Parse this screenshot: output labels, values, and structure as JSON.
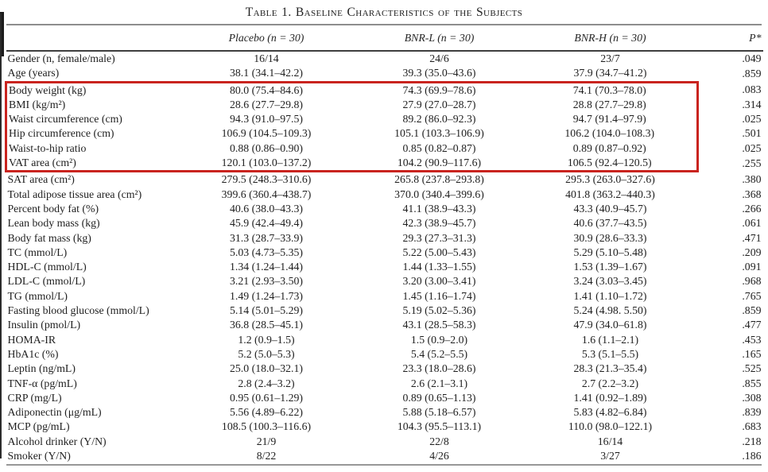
{
  "title": "Table 1. Baseline Characteristics of the Subjects",
  "columns": [
    "",
    "Placebo (n = 30)",
    "BNR-L (n = 30)",
    "BNR-H (n = 30)",
    "P*"
  ],
  "highlight_box": {
    "color": "#c9241f",
    "first_row": "Body weight (kg)",
    "last_row": "VAT area (cm²)",
    "covers_columns": [
      "label",
      "Placebo",
      "BNR-L",
      "BNR-H"
    ]
  },
  "rows": [
    {
      "label": "Gender (n, female/male)",
      "placebo": "16/14",
      "bnr_l": "24/6",
      "bnr_h": "23/7",
      "p": ".049",
      "highlighted": false
    },
    {
      "label": "Age (years)",
      "placebo": "38.1 (34.1–42.2)",
      "bnr_l": "39.3 (35.0–43.6)",
      "bnr_h": "37.9 (34.7–41.2)",
      "p": ".859",
      "highlighted": false
    },
    {
      "label": "Body weight (kg)",
      "placebo": "80.0 (75.4–84.6)",
      "bnr_l": "74.3 (69.9–78.6)",
      "bnr_h": "74.1 (70.3–78.0)",
      "p": ".083",
      "highlighted": true
    },
    {
      "label": "BMI (kg/m²)",
      "placebo": "28.6 (27.7–29.8)",
      "bnr_l": "27.9 (27.0–28.7)",
      "bnr_h": "28.8 (27.7–29.8)",
      "p": ".314",
      "highlighted": true
    },
    {
      "label": "Waist circumference (cm)",
      "placebo": "94.3 (91.0–97.5)",
      "bnr_l": "89.2 (86.0–92.3)",
      "bnr_h": "94.7 (91.4–97.9)",
      "p": ".025",
      "highlighted": true
    },
    {
      "label": "Hip circumference (cm)",
      "placebo": "106.9 (104.5–109.3)",
      "bnr_l": "105.1 (103.3–106.9)",
      "bnr_h": "106.2 (104.0–108.3)",
      "p": ".501",
      "highlighted": true
    },
    {
      "label": "Waist-to-hip ratio",
      "placebo": "0.88 (0.86–0.90)",
      "bnr_l": "0.85 (0.82–0.87)",
      "bnr_h": "0.89 (0.87–0.92)",
      "p": ".025",
      "highlighted": true
    },
    {
      "label": "VAT area (cm²)",
      "placebo": "120.1 (103.0–137.2)",
      "bnr_l": "104.2 (90.9–117.6)",
      "bnr_h": "106.5 (92.4–120.5)",
      "p": ".255",
      "highlighted": true
    },
    {
      "label": "SAT area (cm²)",
      "placebo": "279.5 (248.3–310.6)",
      "bnr_l": "265.8 (237.8–293.8)",
      "bnr_h": "295.3 (263.0–327.6)",
      "p": ".380",
      "highlighted": false
    },
    {
      "label": "Total adipose tissue area (cm²)",
      "placebo": "399.6 (360.4–438.7)",
      "bnr_l": "370.0 (340.4–399.6)",
      "bnr_h": "401.8 (363.2–440.3)",
      "p": ".368",
      "highlighted": false
    },
    {
      "label": "Percent body fat (%)",
      "placebo": "40.6 (38.0–43.3)",
      "bnr_l": "41.1 (38.9–43.3)",
      "bnr_h": "43.3 (40.9–45.7)",
      "p": ".266",
      "highlighted": false
    },
    {
      "label": "Lean body mass (kg)",
      "placebo": "45.9 (42.4–49.4)",
      "bnr_l": "42.3 (38.9–45.7)",
      "bnr_h": "40.6 (37.7–43.5)",
      "p": ".061",
      "highlighted": false
    },
    {
      "label": "Body fat mass (kg)",
      "placebo": "31.3 (28.7–33.9)",
      "bnr_l": "29.3 (27.3–31.3)",
      "bnr_h": "30.9 (28.6–33.3)",
      "p": ".471",
      "highlighted": false
    },
    {
      "label": "TC (mmol/L)",
      "placebo": "5.03 (4.73–5.35)",
      "bnr_l": "5.22 (5.00–5.43)",
      "bnr_h": "5.29 (5.10–5.48)",
      "p": ".209",
      "highlighted": false
    },
    {
      "label": "HDL-C (mmol/L)",
      "placebo": "1.34 (1.24–1.44)",
      "bnr_l": "1.44 (1.33–1.55)",
      "bnr_h": "1.53 (1.39–1.67)",
      "p": ".091",
      "highlighted": false
    },
    {
      "label": "LDL-C (mmol/L)",
      "placebo": "3.21 (2.93–3.50)",
      "bnr_l": "3.20 (3.00–3.41)",
      "bnr_h": "3.24 (3.03–3.45)",
      "p": ".968",
      "highlighted": false
    },
    {
      "label": "TG (mmol/L)",
      "placebo": "1.49 (1.24–1.73)",
      "bnr_l": "1.45 (1.16–1.74)",
      "bnr_h": "1.41 (1.10–1.72)",
      "p": ".765",
      "highlighted": false
    },
    {
      "label": "Fasting blood glucose (mmol/L)",
      "placebo": "5.14 (5.01–5.29)",
      "bnr_l": "5.19 (5.02–5.36)",
      "bnr_h": "5.24 (4.98. 5.50)",
      "p": ".859",
      "highlighted": false
    },
    {
      "label": "Insulin (pmol/L)",
      "placebo": "36.8 (28.5–45.1)",
      "bnr_l": "43.1 (28.5–58.3)",
      "bnr_h": "47.9 (34.0–61.8)",
      "p": ".477",
      "highlighted": false
    },
    {
      "label": "HOMA-IR",
      "placebo": "1.2 (0.9–1.5)",
      "bnr_l": "1.5 (0.9–2.0)",
      "bnr_h": "1.6 (1.1–2.1)",
      "p": ".453",
      "highlighted": false
    },
    {
      "label": "HbA1c (%)",
      "placebo": "5.2 (5.0–5.3)",
      "bnr_l": "5.4 (5.2–5.5)",
      "bnr_h": "5.3 (5.1–5.5)",
      "p": ".165",
      "highlighted": false
    },
    {
      "label": "Leptin (ng/mL)",
      "placebo": "25.0 (18.0–32.1)",
      "bnr_l": "23.3 (18.0–28.6)",
      "bnr_h": "28.3 (21.3–35.4)",
      "p": ".525",
      "highlighted": false
    },
    {
      "label": "TNF-α (pg/mL)",
      "placebo": "2.8 (2.4–3.2)",
      "bnr_l": "2.6 (2.1–3.1)",
      "bnr_h": "2.7 (2.2–3.2)",
      "p": ".855",
      "highlighted": false
    },
    {
      "label": "CRP (mg/L)",
      "placebo": "0.95 (0.61–1.29)",
      "bnr_l": "0.89 (0.65–1.13)",
      "bnr_h": "1.41 (0.92–1.89)",
      "p": ".308",
      "highlighted": false
    },
    {
      "label": "Adiponectin (μg/mL)",
      "placebo": "5.56 (4.89–6.22)",
      "bnr_l": "5.88 (5.18–6.57)",
      "bnr_h": "5.83 (4.82–6.84)",
      "p": ".839",
      "highlighted": false
    },
    {
      "label": "MCP (pg/mL)",
      "placebo": "108.5 (100.3–116.6)",
      "bnr_l": "104.3 (95.5–113.1)",
      "bnr_h": "110.0 (98.0–122.1)",
      "p": ".683",
      "highlighted": false
    },
    {
      "label": "Alcohol drinker (Y/N)",
      "placebo": "21/9",
      "bnr_l": "22/8",
      "bnr_h": "16/14",
      "p": ".218",
      "highlighted": false
    },
    {
      "label": "Smoker (Y/N)",
      "placebo": "8/22",
      "bnr_l": "4/26",
      "bnr_h": "3/27",
      "p": ".186",
      "highlighted": false
    }
  ]
}
